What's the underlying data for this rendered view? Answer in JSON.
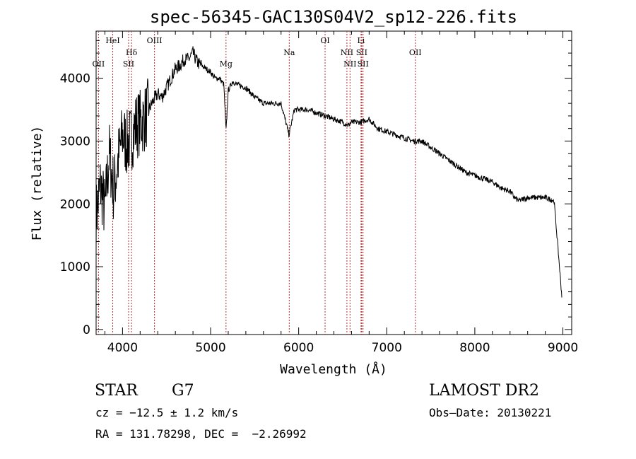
{
  "chart_data": {
    "type": "line",
    "title": "spec-56345-GAC130S04V2_sp12-226.fits",
    "xlabel": "Wavelength (Å)",
    "ylabel": "Flux (relative)",
    "xlim": [
      3700,
      9100
    ],
    "ylim": [
      -80,
      4750
    ],
    "xticks": [
      4000,
      5000,
      6000,
      7000,
      8000,
      9000
    ],
    "yticks": [
      0,
      1000,
      2000,
      3000,
      4000
    ],
    "grid": false,
    "series": [
      {
        "x": [
          3700,
          3750,
          3800,
          3850,
          3900,
          3950,
          4000,
          4050,
          4100,
          4150,
          4200,
          4250,
          4300,
          4350,
          4400,
          4450,
          4500,
          4550,
          4600,
          4650,
          4700,
          4750,
          4800,
          4850,
          4900,
          4950,
          5000,
          5050,
          5100,
          5150,
          5175,
          5200,
          5250,
          5300,
          5400,
          5500,
          5600,
          5700,
          5800,
          5890,
          5950,
          6000,
          6100,
          6200,
          6300,
          6400,
          6500,
          6563,
          6600,
          6700,
          6800,
          6900,
          7000,
          7100,
          7200,
          7300,
          7400,
          7500,
          7600,
          7700,
          7800,
          7900,
          8000,
          8100,
          8200,
          8300,
          8400,
          8450,
          8500,
          8600,
          8700,
          8800,
          8900,
          8990
        ],
        "y": [
          1800,
          2300,
          1900,
          2800,
          2200,
          2700,
          3100,
          2950,
          3050,
          3250,
          3300,
          3350,
          3500,
          3650,
          3750,
          3700,
          3850,
          4000,
          4150,
          4200,
          4300,
          4300,
          4400,
          4250,
          4200,
          4150,
          4100,
          4000,
          4000,
          3900,
          3150,
          3800,
          3950,
          3900,
          3850,
          3700,
          3600,
          3600,
          3600,
          3100,
          3500,
          3500,
          3500,
          3450,
          3400,
          3350,
          3300,
          3250,
          3300,
          3300,
          3350,
          3200,
          3150,
          3100,
          3050,
          3000,
          3000,
          2900,
          2800,
          2700,
          2600,
          2500,
          2450,
          2400,
          2350,
          2250,
          2200,
          2100,
          2050,
          2100,
          2100,
          2100,
          2050,
          500
        ]
      }
    ],
    "lines": [
      {
        "name": "OII",
        "x": 3727,
        "row": 1
      },
      {
        "name": "HeI",
        "x": 3889,
        "row": 0
      },
      {
        "name": "Hδ",
        "x": 4102,
        "row": 2
      },
      {
        "name": "SII",
        "x": 4069,
        "row": 1
      },
      {
        "name": "OIII",
        "x": 4363,
        "row": 0
      },
      {
        "name": "Mg",
        "x": 5175,
        "row": 1
      },
      {
        "name": "Na",
        "x": 5893,
        "row": 2
      },
      {
        "name": "OI",
        "x": 6300,
        "row": 0
      },
      {
        "name": "NII",
        "x": 6548,
        "row": 2
      },
      {
        "name": "NII",
        "x": 6583,
        "row": 1
      },
      {
        "name": "Li",
        "x": 6708,
        "row": 0
      },
      {
        "name": "SII",
        "x": 6716,
        "row": 2
      },
      {
        "name": "SII",
        "x": 6731,
        "row": 1
      },
      {
        "name": "OII",
        "x": 7325,
        "row": 2
      }
    ]
  },
  "info": {
    "object_class": "STAR",
    "subclass": "G7",
    "survey": "LAMOST DR2",
    "cz": "cz = −12.5 ± 1.2 km/s",
    "obs_date": "Obs–Date: 20130221",
    "coords": "RA = 131.78298, DEC =  −2.26992"
  }
}
